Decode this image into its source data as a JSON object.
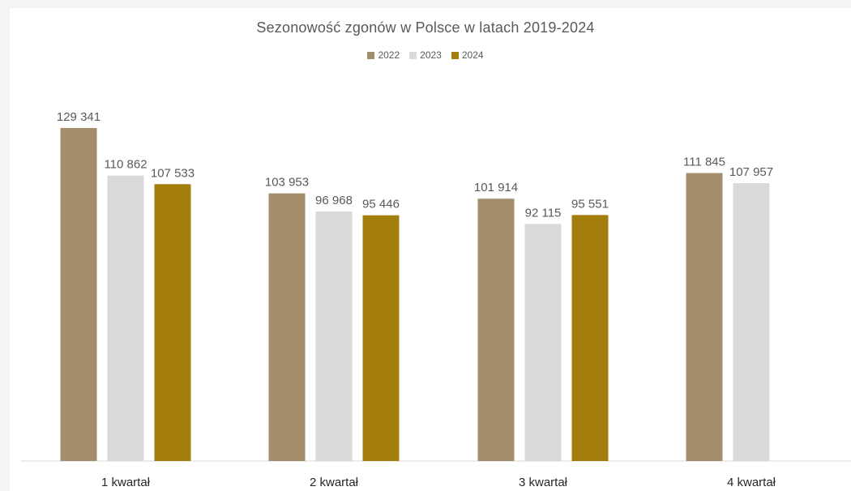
{
  "chart_data": {
    "type": "bar",
    "title": "Sezonowość zgonów w Polsce w latach 2019-2024",
    "categories": [
      "1 kwartał",
      "2 kwartał",
      "3 kwartał",
      "4 kwartał"
    ],
    "series": [
      {
        "name": "2022",
        "color": "#a48d6b",
        "values": [
          129341,
          103953,
          101914,
          111845
        ],
        "labels": [
          "129 341",
          "103 953",
          "101 914",
          "111 845"
        ]
      },
      {
        "name": "2023",
        "color": "#d9d9d9",
        "values": [
          110862,
          96968,
          92115,
          107957
        ],
        "labels": [
          "110 862",
          "96 968",
          "92 115",
          "107 957"
        ]
      },
      {
        "name": "2024",
        "color": "#a37e0d",
        "values": [
          107533,
          95446,
          95551,
          null
        ],
        "labels": [
          "107 533",
          "95 446",
          "95 551",
          ""
        ]
      }
    ],
    "xlabel": "",
    "ylabel": "",
    "ylim": [
      0,
      135000
    ],
    "grid": false,
    "legend_position": "top"
  }
}
